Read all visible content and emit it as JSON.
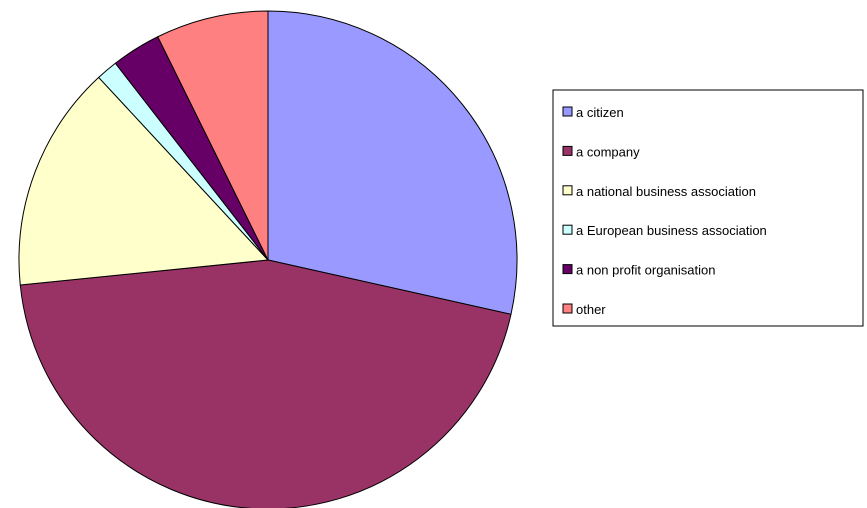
{
  "chart_data": {
    "type": "pie",
    "title": "",
    "legend_position": "right",
    "slices": [
      {
        "label": "a citizen",
        "value": 28.5,
        "color": "#9999FF"
      },
      {
        "label": "a company",
        "value": 44.9,
        "color": "#993366"
      },
      {
        "label": "a national business association",
        "value": 14.7,
        "color": "#FFFFCC"
      },
      {
        "label": "a European business association",
        "value": 1.4,
        "color": "#CCFFFF"
      },
      {
        "label": "a non profit organisation",
        "value": 3.2,
        "color": "#660066"
      },
      {
        "label": "other",
        "value": 7.3,
        "color": "#FF8080"
      }
    ]
  }
}
